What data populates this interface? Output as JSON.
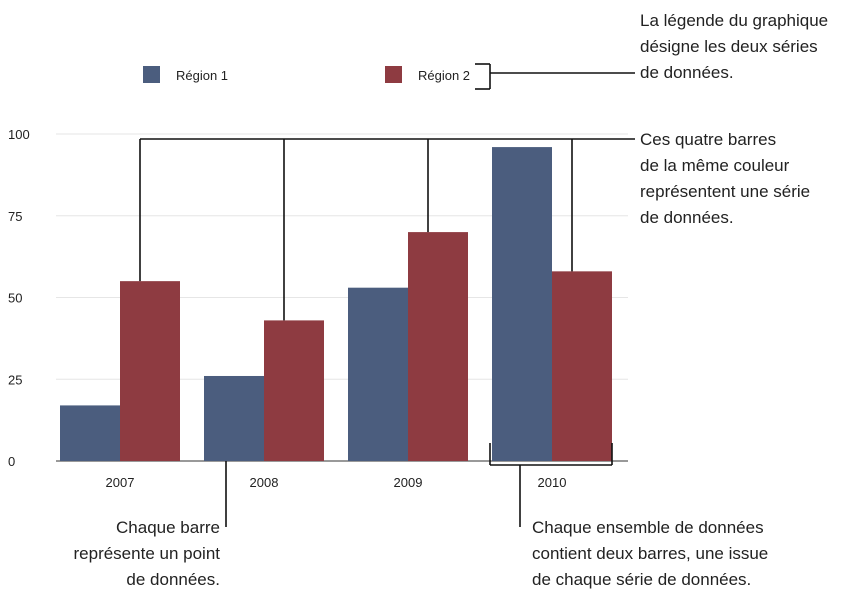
{
  "chart_data": {
    "type": "bar",
    "categories": [
      "2007",
      "2008",
      "2009",
      "2010"
    ],
    "series": [
      {
        "name": "Région 1",
        "color": "#4b5d7e",
        "values": [
          17,
          26,
          53,
          96
        ]
      },
      {
        "name": "Région 2",
        "color": "#8e3b41",
        "values": [
          55,
          43,
          70,
          58
        ]
      }
    ],
    "ylim": [
      0,
      100
    ],
    "yticks": [
      0,
      25,
      50,
      75,
      100
    ],
    "grid": true,
    "legend_position": "top"
  },
  "annotations": {
    "legend_note": [
      "La légende du graphique",
      "désigne les deux séries",
      "de données."
    ],
    "series_note": [
      "Ces quatre barres",
      "de la même couleur",
      "représentent une série",
      "de données."
    ],
    "bar_note": [
      "Chaque barre",
      "représente un point",
      "de données."
    ],
    "group_note": [
      "Chaque ensemble de données",
      "contient deux barres, une issue",
      "de chaque série de données."
    ]
  }
}
